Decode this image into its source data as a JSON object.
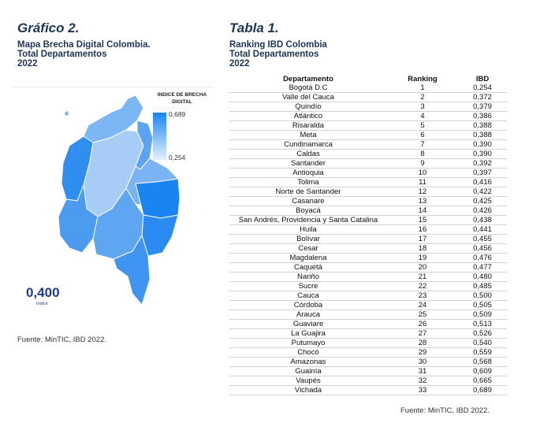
{
  "left": {
    "title": "Gráfico 2.",
    "subtitle_lines": [
      "Mapa Brecha Digital Colombia.",
      "Total Departamentos",
      "2022"
    ],
    "legend": {
      "title_lines": [
        "INDICE DE BRECHA",
        "DIGITAL"
      ],
      "max": "0,689",
      "min": "0,254"
    },
    "national": {
      "value": "0,400",
      "label": "Indice"
    },
    "source": "Fuente: MinTIC, IBD 2022."
  },
  "right": {
    "title": "Tabla 1.",
    "subtitle_lines": [
      "Ranking IBD Colombia",
      "Total Departamentos",
      "2022"
    ],
    "columns": [
      "Departamento",
      "Ranking",
      "IBD"
    ],
    "rows": [
      [
        "Bogotá D.C",
        "1",
        "0,254"
      ],
      [
        "Valle del Cauca",
        "2",
        "0,372"
      ],
      [
        "Quindío",
        "3",
        "0,379"
      ],
      [
        "Atlántico",
        "4",
        "0,386"
      ],
      [
        "Risaralda",
        "5",
        "0,388"
      ],
      [
        "Meta",
        "6",
        "0,388"
      ],
      [
        "Cundinamarca",
        "7",
        "0,390"
      ],
      [
        "Caldas",
        "8",
        "0,390"
      ],
      [
        "Santander",
        "9",
        "0,392"
      ],
      [
        "Antioquia",
        "10",
        "0,397"
      ],
      [
        "Tolima",
        "11",
        "0,416"
      ],
      [
        "Norte de Santander",
        "12",
        "0,422"
      ],
      [
        "Casanare",
        "13",
        "0,425"
      ],
      [
        "Boyacá",
        "14",
        "0,426"
      ],
      [
        "San Andrés, Providencia y Santa Catalina",
        "15",
        "0,438"
      ],
      [
        "Huila",
        "16",
        "0,441"
      ],
      [
        "Bolívar",
        "17",
        "0,455"
      ],
      [
        "Cesar",
        "18",
        "0,456"
      ],
      [
        "Magdalena",
        "19",
        "0,476"
      ],
      [
        "Caquetá",
        "20",
        "0,477"
      ],
      [
        "Nariño",
        "21",
        "0,480"
      ],
      [
        "Sucre",
        "22",
        "0,485"
      ],
      [
        "Cauca",
        "23",
        "0,500"
      ],
      [
        "Córdoba",
        "24",
        "0,505"
      ],
      [
        "Arauca",
        "25",
        "0,509"
      ],
      [
        "Guaviare",
        "26",
        "0,513"
      ],
      [
        "La Guajira",
        "27",
        "0,526"
      ],
      [
        "Putumayo",
        "28",
        "0,540"
      ],
      [
        "Chocó",
        "29",
        "0,559"
      ],
      [
        "Amazonas",
        "30",
        "0,568"
      ],
      [
        "Guainía",
        "31",
        "0,609"
      ],
      [
        "Vaupés",
        "32",
        "0,665"
      ],
      [
        "Vichada",
        "33",
        "0,689"
      ]
    ],
    "source": "Fuente: MinTIC, IBD 2022."
  },
  "colors": {
    "title": "#1d3557",
    "map_dark": "#1a84f2",
    "map_light": "#e3f1ff",
    "accent_value": "#1f3a93"
  }
}
